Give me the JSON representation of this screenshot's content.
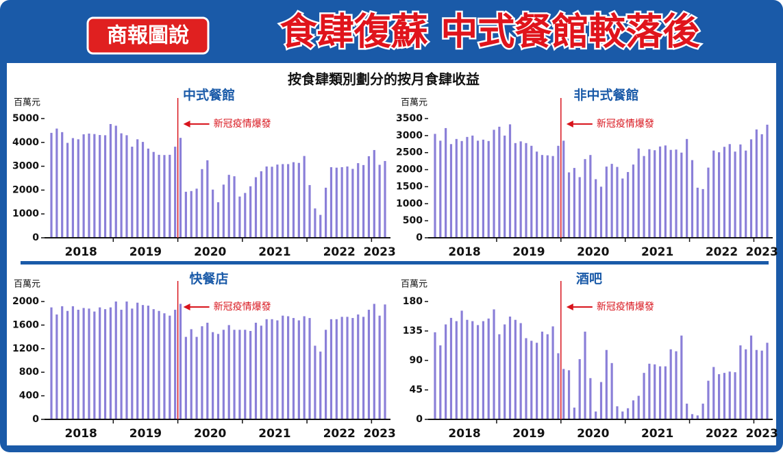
{
  "header": {
    "badge": "商報圖說",
    "title": "食肆復蘇 中式餐館較落後",
    "subtitle": "按食肆類別劃分的按月食肆收益"
  },
  "chart_data": [
    {
      "type": "bar",
      "title": "中式餐館",
      "y_label": "百萬元",
      "annotation": "新冠疫情爆發",
      "color": "#8a7fd8",
      "year_labels": [
        "2018",
        "2019",
        "2020",
        "2021",
        "2022",
        "2023"
      ],
      "ylim": [
        0,
        5000
      ],
      "yticks": [
        0,
        1000,
        2000,
        3000,
        4000,
        5000
      ],
      "values": [
        4400,
        4580,
        4430,
        3980,
        4180,
        4130,
        4340,
        4370,
        4350,
        4310,
        4300,
        4770,
        4700,
        4380,
        4300,
        3820,
        4130,
        4020,
        3740,
        3600,
        3480,
        3470,
        3480,
        3820,
        4190,
        1930,
        1960,
        2060,
        2880,
        3250,
        2020,
        1490,
        2230,
        2640,
        2580,
        1730,
        1880,
        2160,
        2540,
        2790,
        2990,
        2980,
        3070,
        3090,
        3090,
        3170,
        3140,
        3430,
        2210,
        1230,
        960,
        2100,
        2960,
        2940,
        2960,
        2990,
        2890,
        3130,
        3050,
        3420,
        3680,
        3060,
        3220
      ]
    },
    {
      "type": "bar",
      "title": "非中式餐館",
      "y_label": "百萬元",
      "annotation": "新冠疫情爆發",
      "color": "#8a7fd8",
      "year_labels": [
        "2018",
        "2019",
        "2020",
        "2021",
        "2022",
        "2023"
      ],
      "ylim": [
        0,
        3500
      ],
      "yticks": [
        0,
        500,
        1000,
        1500,
        2000,
        2500,
        3000,
        3500
      ],
      "values": [
        3050,
        2850,
        3220,
        2750,
        2900,
        2840,
        2960,
        3000,
        2850,
        2880,
        2840,
        3170,
        3260,
        3000,
        3330,
        2780,
        2830,
        2780,
        2700,
        2530,
        2430,
        2420,
        2400,
        2700,
        2850,
        1920,
        2050,
        1780,
        2310,
        2430,
        1720,
        1500,
        2090,
        2170,
        2080,
        1740,
        1930,
        2150,
        2620,
        2400,
        2600,
        2570,
        2680,
        2710,
        2580,
        2590,
        2500,
        2900,
        2280,
        1470,
        1430,
        2060,
        2560,
        2510,
        2670,
        2750,
        2530,
        2740,
        2560,
        2890,
        3180,
        3040,
        3320
      ]
    },
    {
      "type": "bar",
      "title": "快餐店",
      "y_label": "百萬元",
      "annotation": "新冠疫情爆發",
      "color": "#8a7fd8",
      "year_labels": [
        "2018",
        "2019",
        "2020",
        "2021",
        "2022",
        "2023"
      ],
      "ylim": [
        0,
        2000
      ],
      "yticks": [
        0,
        400,
        800,
        1200,
        1600,
        2000
      ],
      "values": [
        1900,
        1780,
        1920,
        1840,
        1920,
        1860,
        1890,
        1880,
        1830,
        1900,
        1870,
        1900,
        2000,
        1860,
        2000,
        1880,
        1980,
        1940,
        1930,
        1870,
        1840,
        1800,
        1760,
        1860,
        1960,
        1400,
        1530,
        1400,
        1580,
        1640,
        1480,
        1450,
        1520,
        1600,
        1520,
        1520,
        1520,
        1500,
        1640,
        1590,
        1700,
        1700,
        1680,
        1760,
        1750,
        1720,
        1680,
        1750,
        1720,
        1250,
        1150,
        1520,
        1700,
        1700,
        1740,
        1740,
        1720,
        1780,
        1740,
        1860,
        1960,
        1760,
        1950
      ]
    },
    {
      "type": "bar",
      "title": "酒吧",
      "y_label": "百萬元",
      "annotation": "新冠疫情爆發",
      "color": "#8a7fd8",
      "year_labels": [
        "2018",
        "2019",
        "2020",
        "2021",
        "2022",
        "2023"
      ],
      "ylim": [
        0,
        180
      ],
      "yticks": [
        0,
        45,
        90,
        135,
        180
      ],
      "values": [
        133,
        113,
        145,
        155,
        150,
        166,
        152,
        150,
        144,
        150,
        154,
        168,
        130,
        145,
        157,
        152,
        147,
        124,
        120,
        117,
        134,
        130,
        142,
        101,
        77,
        75,
        18,
        92,
        134,
        63,
        12,
        57,
        106,
        86,
        20,
        12,
        17,
        29,
        36,
        71,
        85,
        84,
        81,
        81,
        107,
        104,
        128,
        24,
        8,
        6,
        24,
        59,
        80,
        69,
        71,
        73,
        72,
        113,
        107,
        128,
        106,
        105,
        117
      ]
    }
  ]
}
